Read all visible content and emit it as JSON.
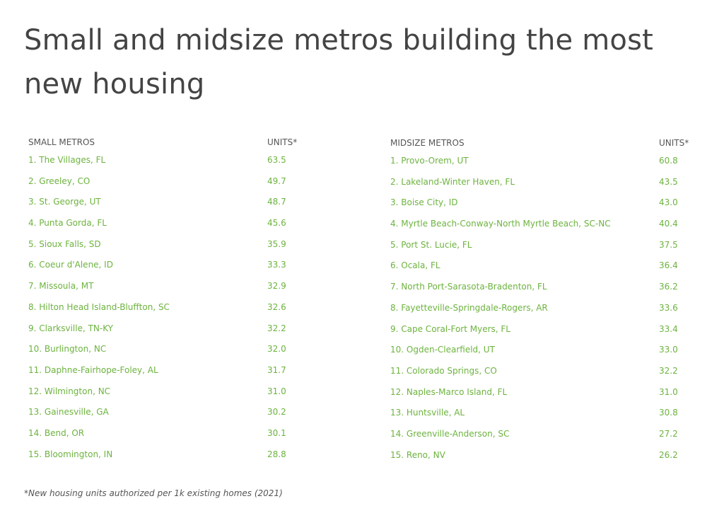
{
  "title": "Small and midsize metros building the most new housing",
  "footnote": "*New housing units authorized per 1k existing homes (2021)",
  "chart_data": [
    {
      "type": "table",
      "columns": [
        "SMALL METROS",
        "UNITS*"
      ],
      "rows": [
        {
          "name": "1. The Villages, FL",
          "value": "63.5"
        },
        {
          "name": "2. Greeley, CO",
          "value": "49.7"
        },
        {
          "name": "3. St. George, UT",
          "value": "48.7"
        },
        {
          "name": "4. Punta Gorda, FL",
          "value": "45.6"
        },
        {
          "name": "5. Sioux Falls, SD",
          "value": "35.9"
        },
        {
          "name": "6. Coeur d'Alene, ID",
          "value": "33.3"
        },
        {
          "name": "7. Missoula, MT",
          "value": "32.9"
        },
        {
          "name": "8. Hilton Head Island-Bluffton, SC",
          "value": "32.6"
        },
        {
          "name": "9. Clarksville, TN-KY",
          "value": "32.2"
        },
        {
          "name": "10. Burlington, NC",
          "value": "32.0"
        },
        {
          "name": "11. Daphne-Fairhope-Foley, AL",
          "value": "31.7"
        },
        {
          "name": "12. Wilmington, NC",
          "value": "31.0"
        },
        {
          "name": "13. Gainesville, GA",
          "value": "30.2"
        },
        {
          "name": "14. Bend, OR",
          "value": "30.1"
        },
        {
          "name": "15. Bloomington, IN",
          "value": "28.8"
        }
      ]
    },
    {
      "type": "table",
      "columns": [
        "MIDSIZE METROS",
        "UNITS*"
      ],
      "rows": [
        {
          "name": "1. Provo-Orem, UT",
          "value": "60.8"
        },
        {
          "name": "2. Lakeland-Winter Haven, FL",
          "value": "43.5"
        },
        {
          "name": "3. Boise City, ID",
          "value": "43.0"
        },
        {
          "name": "4. Myrtle Beach-Conway-North Myrtle Beach, SC-NC",
          "value": "40.4"
        },
        {
          "name": "5. Port St. Lucie, FL",
          "value": "37.5"
        },
        {
          "name": "6. Ocala, FL",
          "value": "36.4"
        },
        {
          "name": "7. North Port-Sarasota-Bradenton, FL",
          "value": "36.2"
        },
        {
          "name": "8. Fayetteville-Springdale-Rogers, AR",
          "value": "33.6"
        },
        {
          "name": "9. Cape Coral-Fort Myers, FL",
          "value": "33.4"
        },
        {
          "name": "10. Ogden-Clearfield, UT",
          "value": "33.0"
        },
        {
          "name": "11. Colorado Springs, CO",
          "value": "32.2"
        },
        {
          "name": "12. Naples-Marco Island, FL",
          "value": "31.0"
        },
        {
          "name": "13. Huntsville, AL",
          "value": "30.8"
        },
        {
          "name": "14. Greenville-Anderson, SC",
          "value": "27.2"
        },
        {
          "name": "15. Reno, NV",
          "value": "26.2"
        }
      ]
    }
  ]
}
